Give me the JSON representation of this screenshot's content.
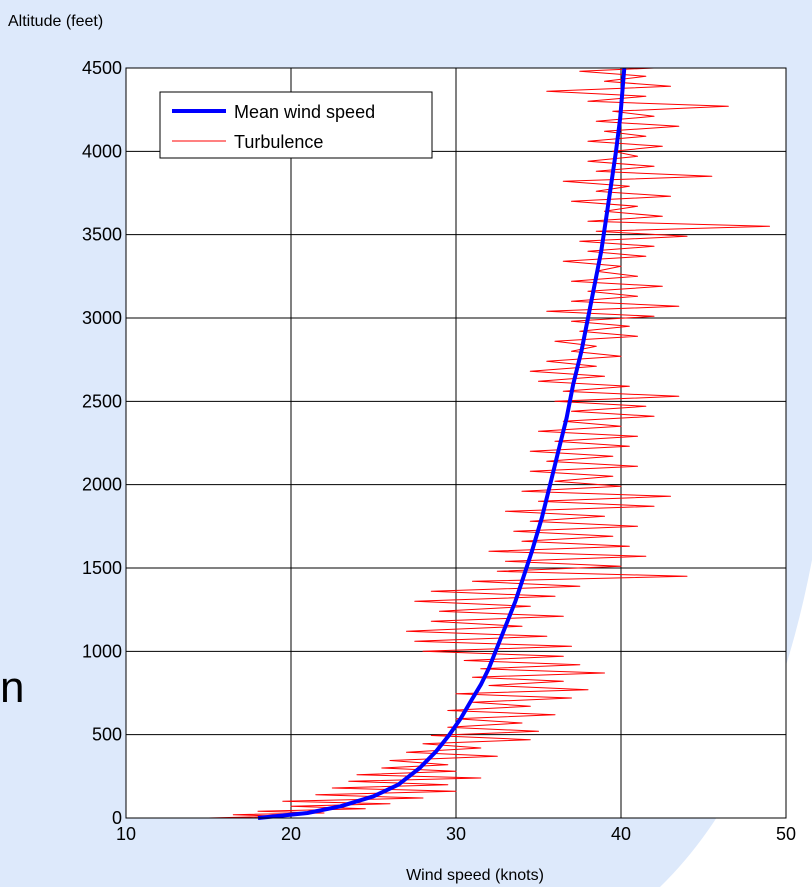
{
  "slide": {
    "side_text": "n"
  },
  "chart_data": {
    "type": "line",
    "xlabel": "Wind speed (knots)",
    "ylabel": "Altitude (feet)",
    "xlim": [
      10,
      50
    ],
    "ylim": [
      0,
      4500
    ],
    "x_ticks": [
      "10",
      "20",
      "30",
      "40",
      "50"
    ],
    "y_ticks": [
      "0",
      "500",
      "1000",
      "1500",
      "2000",
      "2500",
      "3000",
      "3500",
      "4000",
      "4500"
    ],
    "grid": true,
    "legend": "top-left",
    "series": [
      {
        "name": "Mean wind speed",
        "color": "#0000ff",
        "style": "thick",
        "points": [
          [
            18.0,
            0
          ],
          [
            21.0,
            30
          ],
          [
            23.0,
            70
          ],
          [
            25.0,
            130
          ],
          [
            26.5,
            200
          ],
          [
            27.8,
            300
          ],
          [
            28.8,
            400
          ],
          [
            29.6,
            500
          ],
          [
            30.3,
            600
          ],
          [
            30.9,
            700
          ],
          [
            31.5,
            800
          ],
          [
            32.0,
            900
          ],
          [
            32.4,
            1000
          ],
          [
            33.0,
            1150
          ],
          [
            33.6,
            1300
          ],
          [
            34.1,
            1450
          ],
          [
            34.6,
            1600
          ],
          [
            35.2,
            1800
          ],
          [
            35.7,
            2000
          ],
          [
            36.2,
            2200
          ],
          [
            36.7,
            2400
          ],
          [
            37.1,
            2600
          ],
          [
            37.6,
            2800
          ],
          [
            38.0,
            3000
          ],
          [
            38.4,
            3200
          ],
          [
            38.8,
            3400
          ],
          [
            39.1,
            3600
          ],
          [
            39.4,
            3800
          ],
          [
            39.7,
            4000
          ],
          [
            39.95,
            4200
          ],
          [
            40.2,
            4500
          ]
        ]
      },
      {
        "name": "Turbulence",
        "color": "#ff0000",
        "style": "thin",
        "points": [
          [
            15.0,
            0
          ],
          [
            19.5,
            10
          ],
          [
            16.5,
            20
          ],
          [
            22.0,
            30
          ],
          [
            18.0,
            40
          ],
          [
            24.5,
            55
          ],
          [
            20.0,
            70
          ],
          [
            26.0,
            85
          ],
          [
            19.5,
            100
          ],
          [
            28.0,
            120
          ],
          [
            21.5,
            140
          ],
          [
            30.0,
            160
          ],
          [
            22.5,
            180
          ],
          [
            29.5,
            200
          ],
          [
            23.5,
            220
          ],
          [
            31.5,
            240
          ],
          [
            24.0,
            260
          ],
          [
            30.0,
            280
          ],
          [
            25.5,
            300
          ],
          [
            29.5,
            320
          ],
          [
            26.0,
            345
          ],
          [
            32.5,
            370
          ],
          [
            27.0,
            395
          ],
          [
            31.5,
            420
          ],
          [
            28.0,
            445
          ],
          [
            34.5,
            470
          ],
          [
            28.5,
            495
          ],
          [
            35.0,
            520
          ],
          [
            29.5,
            545
          ],
          [
            34.0,
            570
          ],
          [
            30.0,
            595
          ],
          [
            36.0,
            620
          ],
          [
            29.5,
            645
          ],
          [
            34.5,
            670
          ],
          [
            31.0,
            695
          ],
          [
            37.0,
            720
          ],
          [
            30.0,
            745
          ],
          [
            38.0,
            770
          ],
          [
            32.0,
            795
          ],
          [
            36.5,
            820
          ],
          [
            31.0,
            845
          ],
          [
            39.0,
            870
          ],
          [
            31.5,
            895
          ],
          [
            37.5,
            920
          ],
          [
            30.5,
            945
          ],
          [
            36.5,
            970
          ],
          [
            28.0,
            1000
          ],
          [
            37.0,
            1030
          ],
          [
            27.5,
            1060
          ],
          [
            35.5,
            1090
          ],
          [
            27.0,
            1120
          ],
          [
            34.0,
            1150
          ],
          [
            28.5,
            1180
          ],
          [
            36.5,
            1210
          ],
          [
            29.0,
            1240
          ],
          [
            34.5,
            1270
          ],
          [
            27.5,
            1300
          ],
          [
            36.0,
            1330
          ],
          [
            28.5,
            1360
          ],
          [
            37.5,
            1390
          ],
          [
            31.0,
            1420
          ],
          [
            44.0,
            1450
          ],
          [
            32.5,
            1480
          ],
          [
            40.0,
            1510
          ],
          [
            33.0,
            1540
          ],
          [
            41.5,
            1570
          ],
          [
            32.0,
            1600
          ],
          [
            40.5,
            1630
          ],
          [
            34.0,
            1660
          ],
          [
            39.5,
            1690
          ],
          [
            33.5,
            1720
          ],
          [
            41.0,
            1750
          ],
          [
            34.5,
            1780
          ],
          [
            39.0,
            1810
          ],
          [
            33.0,
            1840
          ],
          [
            42.0,
            1870
          ],
          [
            35.0,
            1900
          ],
          [
            43.0,
            1930
          ],
          [
            34.0,
            1960
          ],
          [
            40.0,
            1990
          ],
          [
            36.0,
            2020
          ],
          [
            39.5,
            2050
          ],
          [
            34.5,
            2080
          ],
          [
            41.0,
            2110
          ],
          [
            35.5,
            2140
          ],
          [
            39.5,
            2170
          ],
          [
            34.5,
            2200
          ],
          [
            40.5,
            2230
          ],
          [
            36.0,
            2260
          ],
          [
            41.0,
            2290
          ],
          [
            35.0,
            2320
          ],
          [
            40.0,
            2350
          ],
          [
            36.5,
            2380
          ],
          [
            42.0,
            2410
          ],
          [
            37.0,
            2440
          ],
          [
            41.5,
            2470
          ],
          [
            36.0,
            2500
          ],
          [
            43.5,
            2530
          ],
          [
            36.5,
            2560
          ],
          [
            40.5,
            2590
          ],
          [
            35.0,
            2620
          ],
          [
            39.0,
            2650
          ],
          [
            34.5,
            2680
          ],
          [
            38.5,
            2710
          ],
          [
            35.5,
            2740
          ],
          [
            40.0,
            2770
          ],
          [
            37.0,
            2800
          ],
          [
            38.5,
            2830
          ],
          [
            36.0,
            2860
          ],
          [
            41.0,
            2890
          ],
          [
            37.5,
            2920
          ],
          [
            40.5,
            2950
          ],
          [
            37.0,
            2980
          ],
          [
            42.0,
            3010
          ],
          [
            35.5,
            3040
          ],
          [
            43.5,
            3070
          ],
          [
            37.0,
            3100
          ],
          [
            41.0,
            3130
          ],
          [
            38.0,
            3160
          ],
          [
            42.5,
            3190
          ],
          [
            37.0,
            3220
          ],
          [
            41.0,
            3250
          ],
          [
            38.5,
            3280
          ],
          [
            40.0,
            3310
          ],
          [
            36.5,
            3340
          ],
          [
            41.5,
            3370
          ],
          [
            38.0,
            3400
          ],
          [
            42.0,
            3430
          ],
          [
            37.5,
            3460
          ],
          [
            44.0,
            3490
          ],
          [
            38.5,
            3520
          ],
          [
            49.0,
            3550
          ],
          [
            38.0,
            3580
          ],
          [
            42.5,
            3610
          ],
          [
            39.0,
            3640
          ],
          [
            41.0,
            3670
          ],
          [
            37.0,
            3700
          ],
          [
            43.0,
            3730
          ],
          [
            38.5,
            3760
          ],
          [
            40.5,
            3790
          ],
          [
            36.5,
            3820
          ],
          [
            45.5,
            3850
          ],
          [
            38.5,
            3880
          ],
          [
            42.0,
            3910
          ],
          [
            38.0,
            3940
          ],
          [
            41.0,
            3970
          ],
          [
            39.5,
            4000
          ],
          [
            42.5,
            4030
          ],
          [
            38.0,
            4060
          ],
          [
            41.5,
            4090
          ],
          [
            39.0,
            4120
          ],
          [
            43.5,
            4150
          ],
          [
            38.5,
            4180
          ],
          [
            42.0,
            4210
          ],
          [
            39.5,
            4240
          ],
          [
            46.5,
            4270
          ],
          [
            38.0,
            4300
          ],
          [
            41.5,
            4330
          ],
          [
            35.5,
            4360
          ],
          [
            43.0,
            4390
          ],
          [
            39.0,
            4420
          ],
          [
            41.5,
            4450
          ],
          [
            37.5,
            4480
          ],
          [
            42.0,
            4500
          ]
        ]
      }
    ]
  }
}
